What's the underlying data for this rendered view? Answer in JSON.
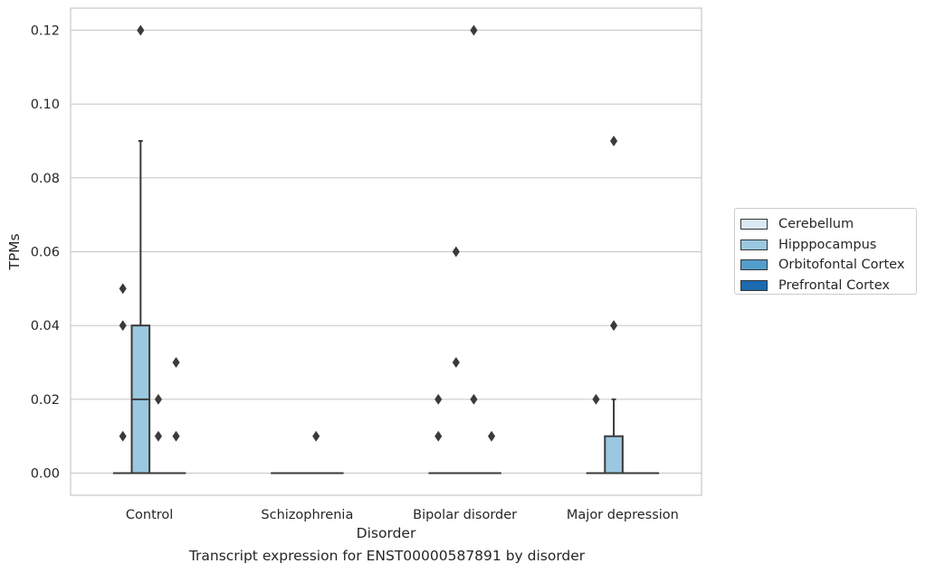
{
  "caption": "Transcript expression for ENST00000587891 by disorder",
  "chart_data": {
    "type": "box",
    "title": "",
    "xlabel": "Disorder",
    "ylabel": "TPMs",
    "ylim": [
      -0.006,
      0.126
    ],
    "yticks": [
      0.0,
      0.02,
      0.04,
      0.06,
      0.08,
      0.1,
      0.12
    ],
    "ytick_labels": [
      "0.00",
      "0.02",
      "0.04",
      "0.06",
      "0.08",
      "0.10",
      "0.12"
    ],
    "grid": "horizontal",
    "legend_placement": "right",
    "categories": [
      "Control",
      "Schizophrenia",
      "Bipolar disorder",
      "Major depression"
    ],
    "series": [
      {
        "name": "Cerebellum",
        "color": "#dbe9f6"
      },
      {
        "name": "Hipppocampus",
        "color": "#9ac8e0"
      },
      {
        "name": "Orbitofontal Cortex",
        "color": "#529dcc"
      },
      {
        "name": "Prefrontal Cortex",
        "color": "#1c6aaf"
      }
    ],
    "boxes": [
      {
        "category": "Control",
        "series": "Cerebellum",
        "q1": 0.0,
        "median": 0.0,
        "q3": 0.0,
        "whisker_low": 0.0,
        "whisker_high": 0.0,
        "outliers": [
          0.01,
          0.04,
          0.05
        ]
      },
      {
        "category": "Control",
        "series": "Hipppocampus",
        "q1": 0.0,
        "median": 0.02,
        "q3": 0.04,
        "whisker_low": 0.0,
        "whisker_high": 0.09,
        "outliers": [
          0.12
        ]
      },
      {
        "category": "Control",
        "series": "Orbitofontal Cortex",
        "q1": 0.0,
        "median": 0.0,
        "q3": 0.0,
        "whisker_low": 0.0,
        "whisker_high": 0.0,
        "outliers": [
          0.01,
          0.02
        ]
      },
      {
        "category": "Control",
        "series": "Prefrontal Cortex",
        "q1": 0.0,
        "median": 0.0,
        "q3": 0.0,
        "whisker_low": 0.0,
        "whisker_high": 0.0,
        "outliers": [
          0.01,
          0.03
        ]
      },
      {
        "category": "Schizophrenia",
        "series": "Cerebellum",
        "q1": 0.0,
        "median": 0.0,
        "q3": 0.0,
        "whisker_low": 0.0,
        "whisker_high": 0.0,
        "outliers": []
      },
      {
        "category": "Schizophrenia",
        "series": "Hipppocampus",
        "q1": 0.0,
        "median": 0.0,
        "q3": 0.0,
        "whisker_low": 0.0,
        "whisker_high": 0.0,
        "outliers": []
      },
      {
        "category": "Schizophrenia",
        "series": "Orbitofontal Cortex",
        "q1": 0.0,
        "median": 0.0,
        "q3": 0.0,
        "whisker_low": 0.0,
        "whisker_high": 0.0,
        "outliers": [
          0.01
        ]
      },
      {
        "category": "Schizophrenia",
        "series": "Prefrontal Cortex",
        "q1": 0.0,
        "median": 0.0,
        "q3": 0.0,
        "whisker_low": 0.0,
        "whisker_high": 0.0,
        "outliers": []
      },
      {
        "category": "Bipolar disorder",
        "series": "Cerebellum",
        "q1": 0.0,
        "median": 0.0,
        "q3": 0.0,
        "whisker_low": 0.0,
        "whisker_high": 0.0,
        "outliers": [
          0.01,
          0.02
        ]
      },
      {
        "category": "Bipolar disorder",
        "series": "Hipppocampus",
        "q1": 0.0,
        "median": 0.0,
        "q3": 0.0,
        "whisker_low": 0.0,
        "whisker_high": 0.0,
        "outliers": [
          0.03,
          0.06
        ]
      },
      {
        "category": "Bipolar disorder",
        "series": "Orbitofontal Cortex",
        "q1": 0.0,
        "median": 0.0,
        "q3": 0.0,
        "whisker_low": 0.0,
        "whisker_high": 0.0,
        "outliers": [
          0.02,
          0.12
        ]
      },
      {
        "category": "Bipolar disorder",
        "series": "Prefrontal Cortex",
        "q1": 0.0,
        "median": 0.0,
        "q3": 0.0,
        "whisker_low": 0.0,
        "whisker_high": 0.0,
        "outliers": [
          0.01
        ]
      },
      {
        "category": "Major depression",
        "series": "Cerebellum",
        "q1": 0.0,
        "median": 0.0,
        "q3": 0.0,
        "whisker_low": 0.0,
        "whisker_high": 0.0,
        "outliers": [
          0.02
        ]
      },
      {
        "category": "Major depression",
        "series": "Hipppocampus",
        "q1": 0.0,
        "median": 0.0,
        "q3": 0.01,
        "whisker_low": 0.0,
        "whisker_high": 0.02,
        "outliers": [
          0.04,
          0.09
        ]
      },
      {
        "category": "Major depression",
        "series": "Orbitofontal Cortex",
        "q1": 0.0,
        "median": 0.0,
        "q3": 0.0,
        "whisker_low": 0.0,
        "whisker_high": 0.0,
        "outliers": []
      },
      {
        "category": "Major depression",
        "series": "Prefrontal Cortex",
        "q1": 0.0,
        "median": 0.0,
        "q3": 0.0,
        "whisker_low": 0.0,
        "whisker_high": 0.0,
        "outliers": []
      }
    ]
  }
}
